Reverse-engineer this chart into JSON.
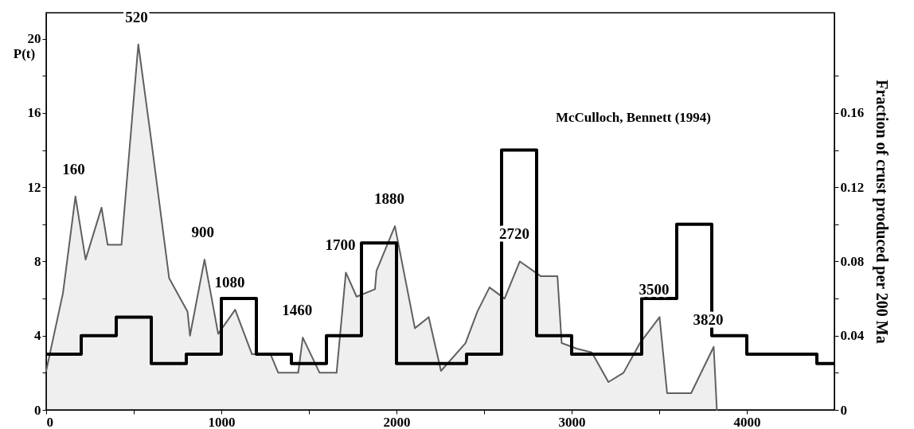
{
  "chart_data": {
    "type": "area",
    "ylabel": "P(t)",
    "y2label": "Fraction of crust produced per 200 Ma",
    "xlim": [
      0,
      4500
    ],
    "ylim": [
      0,
      21.4
    ],
    "y2lim": [
      0,
      0.214
    ],
    "xticks": [
      0,
      {
        "value": 500,
        "label": null
      },
      1000,
      {
        "value": 1500,
        "label": null
      },
      2000,
      {
        "value": 2500,
        "label": null
      },
      3000,
      {
        "value": 3500,
        "label": null
      },
      4000
    ],
    "yticks": [
      0,
      {
        "value": 2,
        "label": null
      },
      4,
      {
        "value": 6,
        "label": null
      },
      8,
      {
        "value": 10,
        "label": null
      },
      12,
      {
        "value": 14,
        "label": null
      },
      16,
      {
        "value": 18,
        "label": null
      },
      20
    ],
    "y2ticks": [
      0,
      {
        "value": 0.02,
        "label": null
      },
      0.04,
      {
        "value": 0.06,
        "label": null
      },
      0.08,
      {
        "value": 0.1,
        "label": null
      },
      0.12,
      {
        "value": 0.14,
        "label": null
      },
      0.16,
      {
        "value": 0.18,
        "label": null
      }
    ],
    "series": [
      {
        "type": "area",
        "color": "#606060",
        "x": [
          0,
          96,
          167,
          225,
          316,
          351,
          430,
          526,
          596,
          702,
          807,
          821,
          904,
          982,
          1079,
          1175,
          1281,
          1325,
          1439,
          1465,
          1561,
          1658,
          1711,
          1772,
          1877,
          1886,
          1991,
          2105,
          2184,
          2254,
          2394,
          2462,
          2531,
          2617,
          2704,
          2825,
          2919,
          2943,
          3029,
          3115,
          3210,
          3296,
          3390,
          3502,
          3545,
          3682,
          3811,
          3829
        ],
        "values": [
          2.1,
          6.3,
          11.5,
          8.1,
          10.9,
          8.9,
          8.9,
          19.7,
          14.8,
          7.1,
          5.3,
          4.0,
          8.1,
          4.1,
          5.4,
          3.0,
          3.0,
          2.0,
          2.0,
          3.9,
          2.0,
          2.0,
          7.4,
          6.1,
          6.5,
          7.5,
          9.9,
          4.4,
          5.0,
          2.1,
          3.6,
          5.3,
          6.6,
          6.0,
          8.0,
          7.2,
          7.2,
          3.6,
          3.3,
          3.1,
          1.5,
          2.0,
          3.6,
          5.0,
          0.9,
          0.9,
          3.4,
          0
        ]
      },
      {
        "type": "step",
        "axis": "y2",
        "name": "McCulloch, Bennett (1994)",
        "color": "#000000",
        "x": [
          0,
          200,
          400,
          600,
          800,
          1000,
          1200,
          1400,
          1600,
          1800,
          2000,
          2200,
          2400,
          2600,
          2800,
          3000,
          3200,
          3400,
          3600,
          3800,
          4000,
          4200,
          4400,
          4500
        ],
        "values": [
          0.03,
          0.04,
          0.05,
          0.025,
          0.03,
          0.06,
          0.03,
          0.025,
          0.04,
          0.09,
          0.025,
          0.025,
          0.03,
          0.14,
          0.04,
          0.03,
          0.03,
          0.06,
          0.1,
          0.04,
          0.03,
          0.03,
          0.025,
          0.025
        ]
      }
    ],
    "annotations": [
      {
        "text": "160",
        "x": 167,
        "y": 11.5
      },
      {
        "text": "520",
        "x": 526,
        "y": 19.7
      },
      {
        "text": "900",
        "x": 904,
        "y": 8.1
      },
      {
        "text": "1080",
        "x": 1079,
        "y": 5.4
      },
      {
        "text": "1460",
        "x": 1465,
        "y": 3.9
      },
      {
        "text": "1700",
        "x": 1711,
        "y": 7.4
      },
      {
        "text": "1880",
        "x": 1991,
        "y": 9.9
      },
      {
        "text": "2720",
        "x": 2704,
        "y": 8.0
      },
      {
        "text": "3500",
        "x": 3502,
        "y": 5.0
      },
      {
        "text": "3820",
        "x": 3811,
        "y": 3.4
      }
    ]
  }
}
